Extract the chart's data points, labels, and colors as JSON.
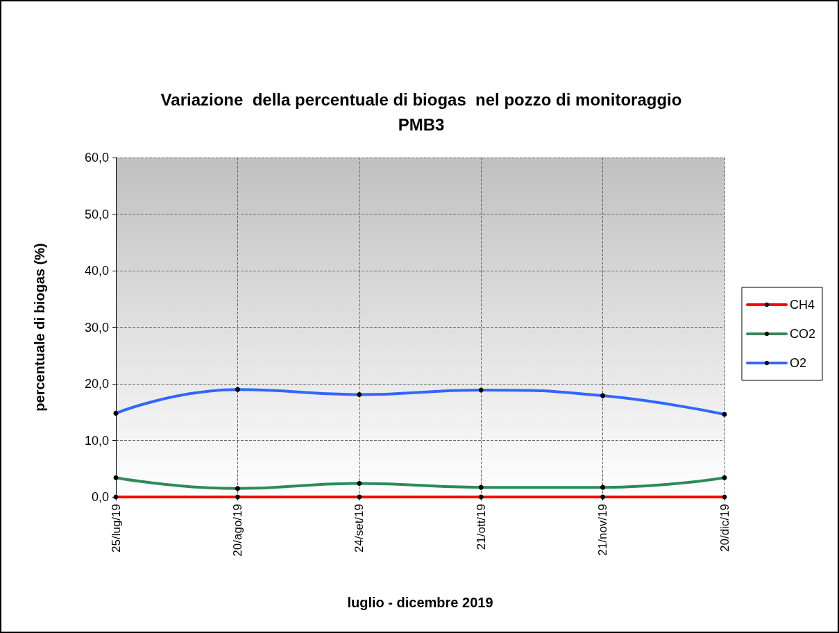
{
  "chart_data": {
    "type": "line",
    "title": "Variazione  della percentuale di biogas  nel pozzo di monitoraggio\nPMB3",
    "xlabel": "luglio - dicembre 2019",
    "ylabel": "percentuale di biogas (%)",
    "categories": [
      "25/lug/19",
      "20/ago/19",
      "24/set/19",
      "21/ott/19",
      "21/nov/19",
      "20/dic/19"
    ],
    "series": [
      {
        "name": "CH4",
        "color": "#ff0000",
        "values": [
          0,
          0,
          0,
          0,
          0,
          0
        ]
      },
      {
        "name": "CO2",
        "color": "#2e8b57",
        "values": [
          3.4,
          1.5,
          2.4,
          1.7,
          1.7,
          3.4
        ]
      },
      {
        "name": "O2",
        "color": "#3366ff",
        "values": [
          14.8,
          19.0,
          18.1,
          18.9,
          17.9,
          14.6
        ]
      }
    ],
    "ylim": [
      0,
      60
    ],
    "yticks": [
      {
        "value": 0,
        "label": "0,0"
      },
      {
        "value": 10,
        "label": "10,0"
      },
      {
        "value": 20,
        "label": "20,0"
      },
      {
        "value": 30,
        "label": "30,0"
      },
      {
        "value": 40,
        "label": "40,0"
      },
      {
        "value": 50,
        "label": "50,0"
      },
      {
        "value": 60,
        "label": "60,0"
      }
    ],
    "grid": true,
    "legend": "right",
    "marker": "circle",
    "line_style": "solid"
  }
}
